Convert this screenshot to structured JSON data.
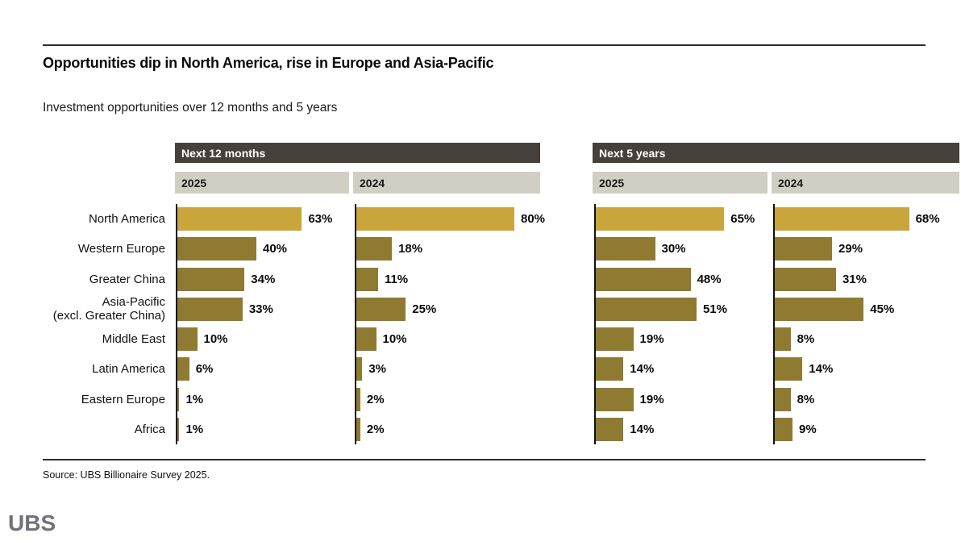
{
  "page": {
    "title": "Opportunities dip in North America, rise in Europe and Asia-Pacific",
    "subtitle": "Investment opportunities over 12 months and 5 years",
    "source": "Source: UBS Billionaire Survey 2025.",
    "logo": "UBS"
  },
  "colors": {
    "bar_normal": "#8f7a31",
    "bar_highlight": "#c9a53c",
    "group_header_bg": "#45413a",
    "group_header_text": "#ffffff",
    "subheader_bg": "#d1cfc3",
    "subheader_text": "#1a1a1a"
  },
  "chart_data": {
    "type": "bar",
    "orientation": "horizontal",
    "title": "Investment opportunities over 12 months and 5 years",
    "value_suffix": "%",
    "categories": [
      "North America",
      "Western Europe",
      "Greater China",
      "Asia-Pacific\n(excl. Greater China)",
      "Middle East",
      "Latin America",
      "Eastern Europe",
      "Africa"
    ],
    "highlight_category_index": 0,
    "groups": [
      {
        "label": "Next 12 months",
        "series": [
          {
            "name": "2025",
            "values": [
              63,
              40,
              34,
              33,
              10,
              6,
              1,
              1
            ]
          },
          {
            "name": "2024",
            "values": [
              80,
              18,
              11,
              25,
              10,
              3,
              2,
              2
            ]
          }
        ]
      },
      {
        "label": "Next 5 years",
        "series": [
          {
            "name": "2025",
            "values": [
              65,
              30,
              48,
              51,
              19,
              14,
              19,
              14
            ]
          },
          {
            "name": "2024",
            "values": [
              68,
              29,
              31,
              45,
              8,
              14,
              8,
              9
            ]
          }
        ]
      }
    ],
    "axis": {
      "value_min": 0,
      "data_labels": true,
      "gridlines": false
    }
  }
}
